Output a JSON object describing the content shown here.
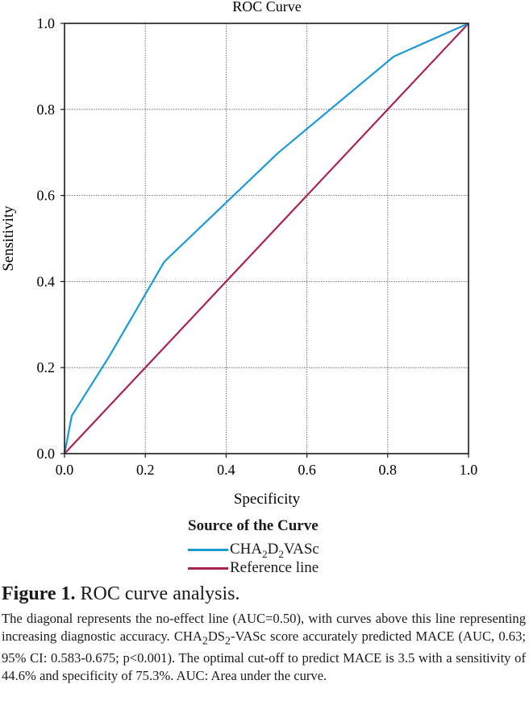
{
  "chart_data": {
    "type": "line",
    "title": "ROC Curve",
    "xlabel": "Specificity",
    "ylabel": "Sensitivity",
    "xlim": [
      0.0,
      1.0
    ],
    "ylim": [
      0.0,
      1.0
    ],
    "xticks": [
      "0.0",
      "0.2",
      "0.4",
      "0.6",
      "0.8",
      "1.0"
    ],
    "yticks": [
      "0.0",
      "0.2",
      "0.4",
      "0.6",
      "0.8",
      "1.0"
    ],
    "grid": true,
    "legend_position": "bottom",
    "series": [
      {
        "name": "CHA2D2VASc",
        "color": "#1c9ad6",
        "x": [
          0.0,
          0.018,
          0.11,
          0.247,
          0.53,
          0.815,
          1.0
        ],
        "y": [
          0.0,
          0.088,
          0.225,
          0.446,
          0.7,
          0.923,
          1.0
        ]
      },
      {
        "name": "Reference line",
        "color": "#a8244f",
        "x": [
          0.0,
          1.0
        ],
        "y": [
          0.0,
          1.0
        ]
      }
    ]
  },
  "legend": {
    "title": "Source of the Curve",
    "items": [
      {
        "pre": "CHA",
        "sub1": "2",
        "mid": "D",
        "sub2": "2",
        "post": "VASc",
        "color": "#1c9ad6"
      },
      {
        "label": "Reference line",
        "color": "#a8244f"
      }
    ]
  },
  "caption": {
    "figure_label": "Figure 1.",
    "figure_title": "ROC curve analysis.",
    "text_part1": "The diagonal represents the no-effect line (AUC=0.50), with curves above this line representing increasing diagnostic accuracy. CHA",
    "sub1": "2",
    "text_part2": "DS",
    "sub2": "2",
    "text_part3": "-VASc score accurately predicted MACE (AUC, 0.63; 95% CI: 0.583-0.675; p<0.001). The optimal cut-off to predict MACE is 3.5 with a sensitivity of 44.6% and specificity of 75.3%. AUC: Area under the curve."
  }
}
